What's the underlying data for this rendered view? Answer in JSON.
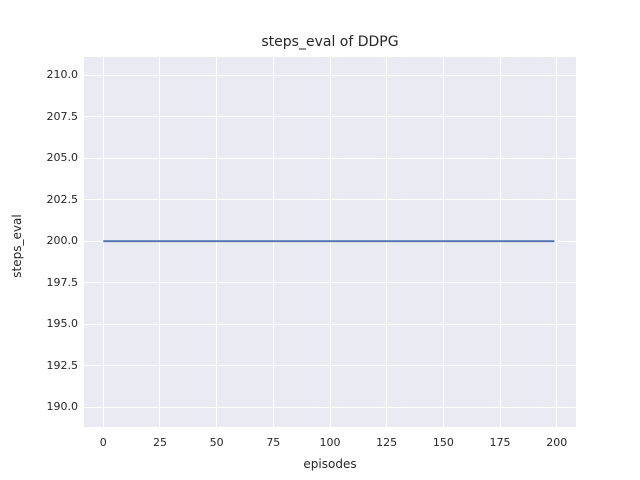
{
  "figure": {
    "background": "#ffffff",
    "plot_background": "#eaeaf2",
    "gridline_color": "#ffffff",
    "text_color": "#262626"
  },
  "chart_data": {
    "type": "line",
    "title": "steps_eval of DDPG",
    "xlabel": "episodes",
    "ylabel": "steps_eval",
    "xlim": [
      -8.5,
      208.5
    ],
    "ylim": [
      188.8,
      211.1
    ],
    "x_ticks": [
      0,
      25,
      50,
      75,
      100,
      125,
      150,
      175,
      200
    ],
    "x_tick_labels": [
      "0",
      "25",
      "50",
      "75",
      "100",
      "125",
      "150",
      "175",
      "200"
    ],
    "y_ticks": [
      190.0,
      192.5,
      195.0,
      197.5,
      200.0,
      202.5,
      205.0,
      207.5,
      210.0
    ],
    "y_tick_labels": [
      "190.0",
      "192.5",
      "195.0",
      "197.5",
      "200.0",
      "202.5",
      "205.0",
      "207.5",
      "210.0"
    ],
    "grid": true,
    "legend_visible": false,
    "series": [
      {
        "name": "DDPG",
        "color": "#4c72b0",
        "line_width": 1.8,
        "points": [
          [
            0,
            200
          ],
          [
            199,
            200
          ]
        ]
      }
    ]
  }
}
